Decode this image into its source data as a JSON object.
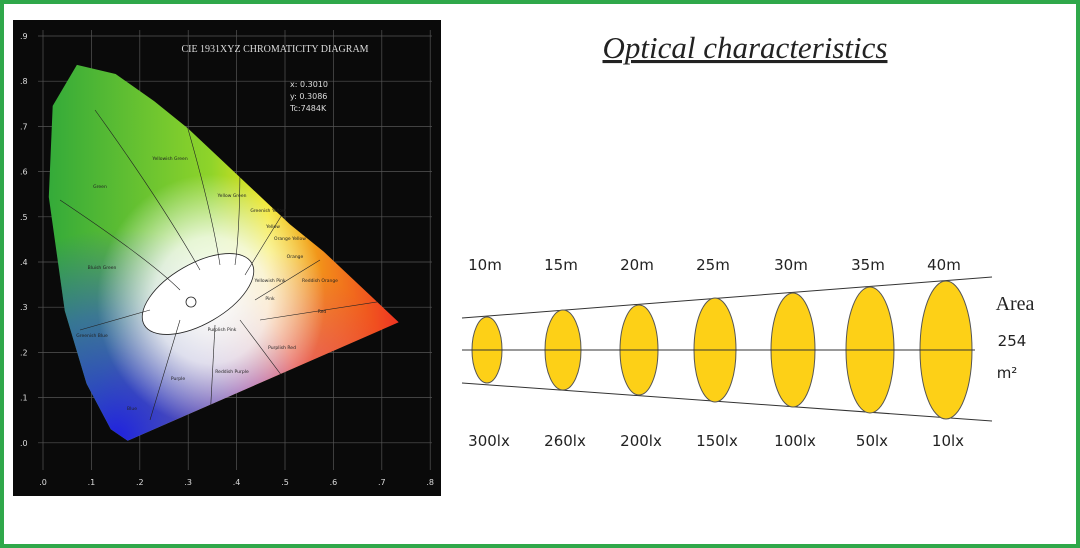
{
  "left_panel": {
    "title": "CIE 1931XYZ CHROMATICITY DIAGRAM",
    "readout": [
      "x: 0.3010",
      "y: 0.3086",
      "Tc:7484K"
    ],
    "x_ticks": [
      ".0",
      ".1",
      ".2",
      ".3",
      ".4",
      ".5",
      ".6",
      ".7",
      ".8"
    ],
    "y_ticks": [
      ".9",
      ".8",
      ".7",
      ".6",
      ".5",
      ".4",
      ".3",
      ".2",
      ".1",
      ".0"
    ],
    "regions": [
      "Green",
      "Yellowish Green",
      "Yellow Green",
      "Greenish Yellow",
      "Yellow",
      "Orange Yellow",
      "Orange",
      "Reddish Orange",
      "Red",
      "Yellowish Pink",
      "Pink",
      "Purplish Pink",
      "Purplish Red",
      "Reddish Purple",
      "Purple",
      "Bluish Green",
      "Greenish Blue",
      "Blue"
    ]
  },
  "right_panel": {
    "title": "Optical characteristics",
    "distances": [
      "10m",
      "15m",
      "20m",
      "25m",
      "30m",
      "35m",
      "40m"
    ],
    "illuminance": [
      "300lx",
      "260lx",
      "200lx",
      "150lx",
      "100lx",
      "50lx",
      "10lx"
    ],
    "area_label": "Area",
    "area_value": "254",
    "area_unit": "m²"
  }
}
